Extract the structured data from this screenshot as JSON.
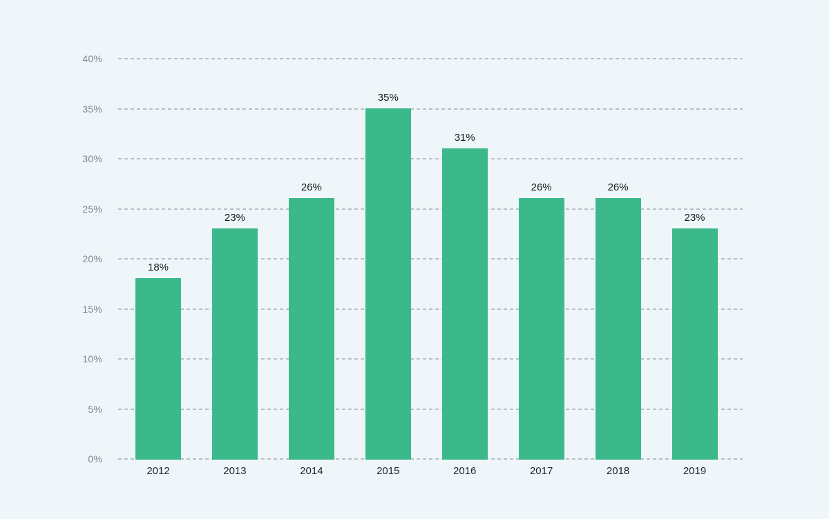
{
  "page": {
    "background_color": "#EFF6F9"
  },
  "chart_data": {
    "type": "bar",
    "title": "",
    "xlabel": "",
    "ylabel": "",
    "categories": [
      "2012",
      "2013",
      "2014",
      "2015",
      "2016",
      "2017",
      "2018",
      "2019"
    ],
    "values": [
      18,
      23,
      26,
      35,
      31,
      26,
      26,
      23
    ],
    "bar_labels": [
      "18%",
      "23%",
      "26%",
      "35%",
      "31%",
      "26%",
      "26%",
      "23%"
    ],
    "ylim": [
      0,
      40
    ],
    "ytick_step": 5,
    "ytick_labels": [
      "0%",
      "5%",
      "10%",
      "15%",
      "20%",
      "25%",
      "30%",
      "35%",
      "40%"
    ],
    "grid": "horizontal-dashed",
    "legend": "none",
    "colors": {
      "bar": "#3CB98A",
      "gridline": "#B7BEC8",
      "ytick_label": "#7E8893",
      "xtick_label": "#1F242C",
      "value_label": "#15191F"
    }
  }
}
